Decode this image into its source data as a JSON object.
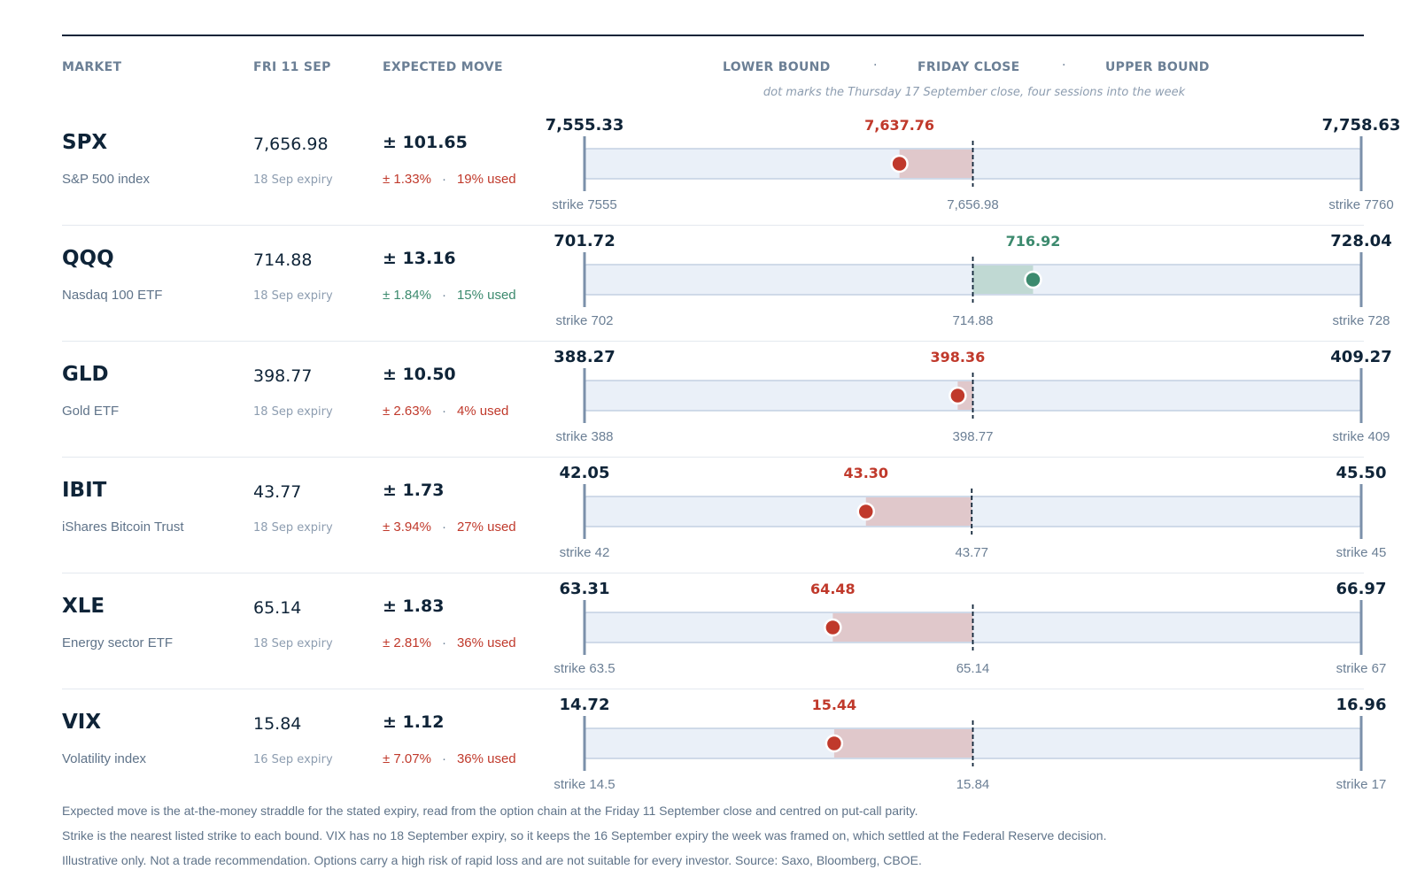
{
  "header": {
    "market": "MARKET",
    "date": "FRI 11 SEP",
    "expected_move": "EXPECTED MOVE",
    "lower_bound": "LOWER BOUND",
    "friday_close": "FRIDAY CLOSE",
    "upper_bound": "UPPER BOUND",
    "separator": "·",
    "subtitle": "dot marks the Thursday 17 September close, four sessions into the week"
  },
  "colors": {
    "ink": "#0f2438",
    "muted": "#6b7f95",
    "up": "#3c8a6e",
    "down": "#c0392b",
    "track_fill": "#eaf0f8",
    "track_border": "#c3d0e2",
    "up_band": "#c0d9d3",
    "down_band": "#e0c8cb"
  },
  "rows": [
    {
      "ticker": "SPX",
      "name": "S&P 500 index",
      "close": "7,656.98",
      "expiry": "18 Sep expiry",
      "move": "± 101.65",
      "move_pct": "± 1.33%",
      "used": "19% used",
      "direction": "down",
      "sep": "·",
      "low_label": "7,555.33",
      "high_label": "7,758.63",
      "thu_label": "7,637.76",
      "low_strike": "strike 7555",
      "high_strike": "strike 7760",
      "close_label": "7,656.98"
    },
    {
      "ticker": "QQQ",
      "name": "Nasdaq 100 ETF",
      "close": "714.88",
      "expiry": "18 Sep expiry",
      "move": "± 13.16",
      "move_pct": "± 1.84%",
      "used": "15% used",
      "direction": "up",
      "sep": "·",
      "low_label": "701.72",
      "high_label": "728.04",
      "thu_label": "716.92",
      "low_strike": "strike 702",
      "high_strike": "strike 728",
      "close_label": "714.88"
    },
    {
      "ticker": "GLD",
      "name": "Gold ETF",
      "close": "398.77",
      "expiry": "18 Sep expiry",
      "move": "± 10.50",
      "move_pct": "± 2.63%",
      "used": "4% used",
      "direction": "down",
      "sep": "·",
      "low_label": "388.27",
      "high_label": "409.27",
      "thu_label": "398.36",
      "low_strike": "strike 388",
      "high_strike": "strike 409",
      "close_label": "398.77"
    },
    {
      "ticker": "IBIT",
      "name": "iShares Bitcoin Trust",
      "close": "43.77",
      "expiry": "18 Sep expiry",
      "move": "± 1.73",
      "move_pct": "± 3.94%",
      "used": "27% used",
      "direction": "down",
      "sep": "·",
      "low_label": "42.05",
      "high_label": "45.50",
      "thu_label": "43.30",
      "low_strike": "strike 42",
      "high_strike": "strike 45",
      "close_label": "43.77"
    },
    {
      "ticker": "XLE",
      "name": "Energy sector ETF",
      "close": "65.14",
      "expiry": "18 Sep expiry",
      "move": "± 1.83",
      "move_pct": "± 2.81%",
      "used": "36% used",
      "direction": "down",
      "sep": "·",
      "low_label": "63.31",
      "high_label": "66.97",
      "thu_label": "64.48",
      "low_strike": "strike 63.5",
      "high_strike": "strike 67",
      "close_label": "65.14"
    },
    {
      "ticker": "VIX",
      "name": "Volatility index",
      "close": "15.84",
      "expiry": "16 Sep expiry",
      "move": "± 1.12",
      "move_pct": "± 7.07%",
      "used": "36% used",
      "direction": "down",
      "sep": "·",
      "low_label": "14.72",
      "high_label": "16.96",
      "thu_label": "15.44",
      "low_strike": "strike 14.5",
      "high_strike": "strike 17",
      "close_label": "15.84"
    }
  ],
  "chart_data": {
    "type": "range",
    "series": [
      {
        "name": "SPX",
        "lower": 7555.33,
        "close": 7656.98,
        "upper": 7758.63,
        "thursday": 7637.76
      },
      {
        "name": "QQQ",
        "lower": 701.72,
        "close": 714.88,
        "upper": 728.04,
        "thursday": 716.92
      },
      {
        "name": "GLD",
        "lower": 388.27,
        "close": 398.77,
        "upper": 409.27,
        "thursday": 398.36
      },
      {
        "name": "IBIT",
        "lower": 42.05,
        "close": 43.77,
        "upper": 45.5,
        "thursday": 43.3
      },
      {
        "name": "XLE",
        "lower": 63.31,
        "close": 65.14,
        "upper": 66.97,
        "thursday": 64.48
      },
      {
        "name": "VIX",
        "lower": 14.72,
        "close": 15.84,
        "upper": 16.96,
        "thursday": 15.44
      }
    ]
  },
  "footnotes": [
    "Expected move is the at-the-money straddle for the stated expiry, read from the option chain at the Friday 11 September close and centred on put-call parity.",
    "Strike is the nearest listed strike to each bound. VIX has no 18 September expiry, so it keeps the 16 September expiry the week was framed on, which settled at the Federal Reserve decision.",
    "Illustrative only. Not a trade recommendation. Options carry a high risk of rapid loss and are not suitable for every investor. Source: Saxo, Bloomberg, CBOE."
  ]
}
